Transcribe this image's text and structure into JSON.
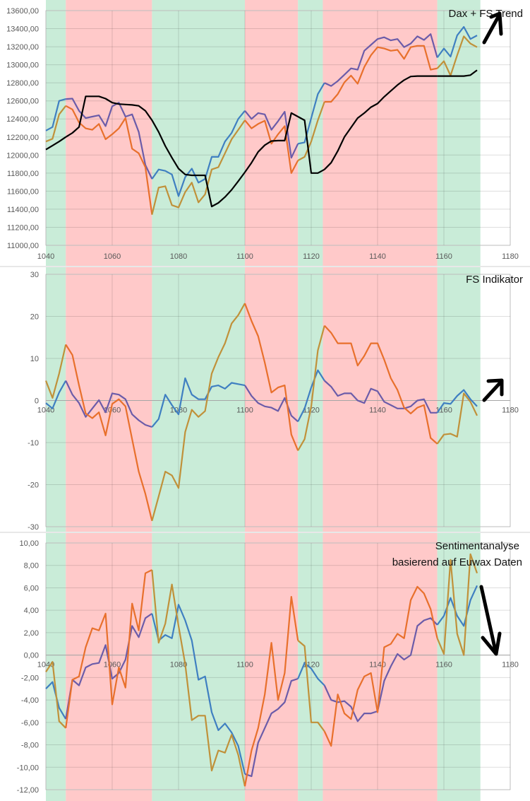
{
  "zone_colors": {
    "green": "#c9ecd8",
    "red": "#ffc9c9"
  },
  "zones": [
    {
      "from": 1040,
      "to": 1046,
      "type": "green"
    },
    {
      "from": 1046,
      "to": 1072,
      "type": "red"
    },
    {
      "from": 1072,
      "to": 1100,
      "type": "green"
    },
    {
      "from": 1100,
      "to": 1116,
      "type": "red"
    },
    {
      "from": 1116,
      "to": 1123.5,
      "type": "green"
    },
    {
      "from": 1123.5,
      "to": 1158,
      "type": "red"
    },
    {
      "from": 1158,
      "to": 1171,
      "type": "green"
    }
  ],
  "chart_data": [
    {
      "type": "line",
      "title": "Dax + FS Trend",
      "annotation_arrow": "up-right",
      "xlim": [
        1040,
        1180
      ],
      "ylim": [
        11000,
        13600
      ],
      "grid": true,
      "x_ticks": [
        "1040",
        "1060",
        "1080",
        "1100",
        "1120",
        "1140",
        "1160",
        "1180"
      ],
      "y_ticks": [
        "11000,00",
        "11200,00",
        "11400,00",
        "11600,00",
        "11800,00",
        "12000,00",
        "12200,00",
        "12400,00",
        "12600,00",
        "12800,00",
        "13000,00",
        "13200,00",
        "13400,00",
        "13600,00"
      ],
      "x": {
        "start": 1040,
        "step": 2
      },
      "series": [
        {
          "colors": {
            "green": "#3f7fc1",
            "red": "#6b5ca9"
          },
          "values": [
            12270,
            12310,
            12600,
            12620,
            12625,
            12490,
            12410,
            12425,
            12440,
            12320,
            12540,
            12580,
            12425,
            12450,
            12255,
            11890,
            11735,
            11840,
            11825,
            11785,
            11545,
            11755,
            11850,
            11695,
            11735,
            11980,
            11980,
            12150,
            12245,
            12400,
            12490,
            12400,
            12465,
            12450,
            12280,
            12375,
            12480,
            11970,
            12125,
            12140,
            12410,
            12675,
            12800,
            12765,
            12820,
            12890,
            12960,
            12945,
            13155,
            13220,
            13285,
            13305,
            13270,
            13285,
            13195,
            13235,
            13315,
            13275,
            13340,
            13080,
            13180,
            13090,
            13325,
            13420,
            13285,
            13325
          ]
        },
        {
          "colors": {
            "green": "#c0913a",
            "red": "#e8702c"
          },
          "values": [
            12150,
            12180,
            12450,
            12545,
            12505,
            12360,
            12295,
            12280,
            12345,
            12175,
            12230,
            12295,
            12410,
            12070,
            12020,
            11865,
            11340,
            11640,
            11655,
            11445,
            11420,
            11590,
            11695,
            11475,
            11565,
            11840,
            11865,
            12020,
            12175,
            12280,
            12385,
            12295,
            12345,
            12380,
            12125,
            12230,
            12320,
            11800,
            11940,
            11980,
            12150,
            12385,
            12590,
            12590,
            12675,
            12805,
            12880,
            12790,
            12975,
            13105,
            13195,
            13180,
            13155,
            13165,
            13065,
            13195,
            13210,
            13210,
            12945,
            12960,
            13040,
            12880,
            13105,
            13315,
            13235,
            13195
          ]
        },
        {
          "colors": {
            "green": "#000000",
            "red": "#000000"
          },
          "values": [
            12060,
            12105,
            12150,
            12200,
            12245,
            12310,
            12650,
            12650,
            12650,
            12625,
            12580,
            12565,
            12560,
            12555,
            12545,
            12490,
            12385,
            12255,
            12100,
            11970,
            11850,
            11785,
            11775,
            11775,
            11775,
            11430,
            11470,
            11535,
            11615,
            11710,
            11810,
            11915,
            12035,
            12110,
            12155,
            12160,
            12160,
            12465,
            12425,
            12385,
            11800,
            11800,
            11840,
            11915,
            12045,
            12200,
            12305,
            12410,
            12465,
            12530,
            12570,
            12645,
            12710,
            12775,
            12830,
            12870,
            12875,
            12875,
            12875,
            12875,
            12875,
            12875,
            12875,
            12875,
            12885,
            12940
          ]
        }
      ]
    },
    {
      "type": "line",
      "title": "FS Indikator",
      "annotation_arrow": "up-right",
      "xlim": [
        1040,
        1180
      ],
      "ylim": [
        -30,
        30
      ],
      "grid": true,
      "x_ticks": [
        "1040",
        "1060",
        "1080",
        "1100",
        "1120",
        "1140",
        "1160",
        "1180"
      ],
      "y_ticks": [
        "-30",
        "-20",
        "-10",
        "0",
        "10",
        "20",
        "30"
      ],
      "x": {
        "start": 1040,
        "step": 2
      },
      "series": [
        {
          "colors": {
            "green": "#3f7fc1",
            "red": "#6b5ca9"
          },
          "values": [
            -0.6,
            -1.9,
            1.9,
            4.7,
            1.4,
            -0.6,
            -3.9,
            -1.9,
            0.1,
            -2.8,
            1.7,
            1.4,
            0.3,
            -3.3,
            -4.7,
            -5.8,
            -6.3,
            -4.4,
            1.4,
            -1.1,
            -3.3,
            5.3,
            1.4,
            0.3,
            0.3,
            3.3,
            3.6,
            2.8,
            4.2,
            3.9,
            3.6,
            1.1,
            -0.6,
            -1.4,
            -1.7,
            -2.5,
            0.6,
            -3.6,
            -5.0,
            -1.9,
            3.1,
            7.2,
            4.7,
            3.3,
            1.1,
            1.7,
            1.7,
            0,
            -0.6,
            2.8,
            2.2,
            -0.3,
            -1.1,
            -1.9,
            -1.9,
            -1.4,
            0,
            0.3,
            -2.9,
            -2.9,
            -0.6,
            -0.8,
            1.1,
            2.5,
            0.3,
            -1.4
          ]
        },
        {
          "colors": {
            "green": "#c0913a",
            "red": "#e8702c"
          },
          "values": [
            4.7,
            0.6,
            6.4,
            13.3,
            10.8,
            3.6,
            -3.1,
            -4.2,
            -2.8,
            -8.3,
            -0.8,
            0.3,
            -1.4,
            -9.2,
            -16.9,
            -22.2,
            -28.6,
            -22.8,
            -16.9,
            -17.8,
            -20.8,
            -7.5,
            -2.2,
            -3.9,
            -2.5,
            6.4,
            10.3,
            13.6,
            18.3,
            20.3,
            23.1,
            18.9,
            15.3,
            9.0,
            1.9,
            3.1,
            3.6,
            -8.1,
            -11.9,
            -9.2,
            -1.4,
            11.9,
            17.8,
            16.1,
            13.6,
            13.6,
            13.6,
            8.3,
            10.6,
            13.6,
            13.6,
            9.7,
            5.3,
            2.5,
            -1.7,
            -3.1,
            -1.7,
            -1.1,
            -8.9,
            -10.3,
            -8.1,
            -7.9,
            -8.6,
            1.7,
            -0.3,
            -3.6
          ]
        }
      ]
    },
    {
      "type": "line",
      "title": "Sentimentanalyse",
      "subtitle": "basierend auf Euwax Daten",
      "annotation_arrow": "down",
      "xlim": [
        1040,
        1180
      ],
      "ylim": [
        -12,
        10
      ],
      "grid": true,
      "x_ticks": [
        "1040",
        "1060",
        "1080",
        "1100",
        "1120",
        "1140",
        "1160",
        "1180"
      ],
      "y_ticks": [
        "-12,00",
        "-10,00",
        "-8,00",
        "-6,00",
        "-4,00",
        "-2,00",
        "0,00",
        "2,00",
        "4,00",
        "6,00",
        "8,00",
        "10,00"
      ],
      "x": {
        "start": 1040,
        "step": 2
      },
      "series": [
        {
          "colors": {
            "green": "#3f7fc1",
            "red": "#6b5ca9"
          },
          "values": [
            -3.0,
            -2.4,
            -4.7,
            -5.7,
            -2.2,
            -2.7,
            -1.1,
            -0.8,
            -0.7,
            0.9,
            -2.1,
            -1.6,
            -0.4,
            2.6,
            1.6,
            3.3,
            3.7,
            1.3,
            1.8,
            1.5,
            4.5,
            3.1,
            1.3,
            -2.2,
            -1.9,
            -5.1,
            -6.7,
            -6.1,
            -6.9,
            -8.1,
            -10.6,
            -10.8,
            -7.8,
            -6.5,
            -5.2,
            -4.8,
            -4.2,
            -2.3,
            -2.1,
            -0.7,
            -1.2,
            -2.1,
            -2.7,
            -4.0,
            -4.2,
            -4.1,
            -4.6,
            -5.9,
            -5.2,
            -5.2,
            -5.0,
            -2.3,
            -1.0,
            0.1,
            -0.4,
            0.0,
            2.6,
            3.1,
            3.3,
            2.7,
            3.5,
            5.1,
            3.5,
            2.6,
            4.9,
            6.2
          ]
        },
        {
          "colors": {
            "green": "#c0913a",
            "red": "#e8702c"
          },
          "values": [
            -1.5,
            -0.6,
            -5.9,
            -6.5,
            -2.2,
            -1.9,
            0.7,
            2.4,
            2.2,
            3.7,
            -4.4,
            -1.1,
            -2.9,
            4.6,
            2.2,
            7.3,
            7.6,
            1.1,
            2.8,
            6.3,
            2.6,
            -0.8,
            -5.8,
            -5.4,
            -5.4,
            -10.3,
            -8.5,
            -8.7,
            -7.1,
            -8.9,
            -11.7,
            -8.5,
            -6.5,
            -3.5,
            1.1,
            -4.0,
            -1.6,
            5.2,
            1.3,
            0.8,
            -6.0,
            -6.0,
            -6.8,
            -8.1,
            -3.5,
            -5.2,
            -5.7,
            -3.1,
            -1.9,
            -1.6,
            -5.1,
            0.7,
            1.0,
            1.9,
            1.5,
            4.9,
            6.1,
            5.5,
            4.1,
            1.5,
            0.1,
            8.5,
            1.9,
            0.0,
            9.0,
            7.3
          ]
        }
      ]
    }
  ]
}
